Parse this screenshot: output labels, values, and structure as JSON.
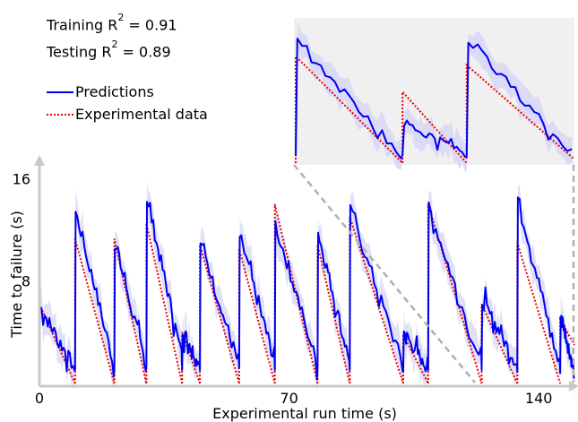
{
  "stats": {
    "training": {
      "prefix": "Training R",
      "exponent": "2",
      "value": " = 0.91"
    },
    "testing": {
      "prefix": "Testing R",
      "exponent": "2",
      "value": " = 0.89"
    }
  },
  "colors": {
    "prediction": "#0000ee",
    "experimental": "#ee0000",
    "band": "#d8d8f8",
    "axis": "#c8c8c8",
    "inset_bg": "#f0f0f0",
    "connector": "#b0b0b0"
  },
  "chart_data": {
    "type": "line",
    "xlabel": "Experimental run time (s)",
    "ylabel": "Time to failure (s)",
    "xlim": [
      0,
      150
    ],
    "ylim": [
      0,
      17
    ],
    "xticks": [
      0,
      70,
      140
    ],
    "yticks": [
      8,
      16
    ],
    "legend": {
      "placement": "top-left",
      "entries": [
        "Predictions",
        "Experimental data"
      ]
    },
    "series": [
      {
        "name": "Experimental data",
        "style": "dotted",
        "color": "#ee0000",
        "cycles": [
          [
            0,
            10,
            6.2,
            0
          ],
          [
            10,
            21,
            11.3,
            0
          ],
          [
            21,
            30,
            11.3,
            0
          ],
          [
            30,
            40,
            12.5,
            0
          ],
          [
            40,
            45,
            4.0,
            0
          ],
          [
            45,
            56,
            10.8,
            0
          ],
          [
            56,
            66,
            10.5,
            0
          ],
          [
            66,
            78,
            14.0,
            0
          ],
          [
            78,
            87,
            10.8,
            0
          ],
          [
            87,
            102,
            13.0,
            0
          ],
          [
            102,
            109,
            3.8,
            0
          ],
          [
            109,
            124,
            14.0,
            0
          ],
          [
            124,
            134,
            6.2,
            0
          ],
          [
            134,
            146,
            11.0,
            0
          ],
          [
            146,
            150,
            5.0,
            3.0
          ]
        ]
      },
      {
        "name": "Predictions",
        "style": "solid",
        "color": "#0000ee",
        "cycles": [
          [
            0,
            10,
            6.0,
            1.2
          ],
          [
            10,
            21,
            13.5,
            1.5
          ],
          [
            21,
            30,
            11.0,
            1.5
          ],
          [
            30,
            40,
            14.5,
            2.2
          ],
          [
            40,
            45,
            4.2,
            1.5
          ],
          [
            45,
            56,
            11.0,
            1.5
          ],
          [
            56,
            66,
            11.5,
            1.8
          ],
          [
            66,
            78,
            12.5,
            1.5
          ],
          [
            78,
            87,
            11.8,
            1.8
          ],
          [
            87,
            102,
            13.5,
            1.5
          ],
          [
            102,
            109,
            4.0,
            1.2
          ],
          [
            109,
            124,
            13.8,
            1.5
          ],
          [
            124,
            134,
            6.5,
            1.5
          ],
          [
            134,
            146,
            14.5,
            1.2
          ],
          [
            146,
            150,
            5.5,
            1.0
          ]
        ]
      }
    ],
    "inset": {
      "xlim": [
        124,
        150
      ],
      "ylim": [
        0,
        15.5
      ],
      "experimental": [
        [
          124,
          134,
          12.0,
          0
        ],
        [
          134,
          140,
          8.0,
          0
        ],
        [
          140,
          150,
          11.0,
          0.5
        ]
      ],
      "predictions": [
        [
          124,
          134,
          13.5,
          1.0
        ],
        [
          134,
          140,
          4.5,
          1.2
        ],
        [
          140,
          150,
          14.0,
          1.0
        ]
      ]
    }
  }
}
